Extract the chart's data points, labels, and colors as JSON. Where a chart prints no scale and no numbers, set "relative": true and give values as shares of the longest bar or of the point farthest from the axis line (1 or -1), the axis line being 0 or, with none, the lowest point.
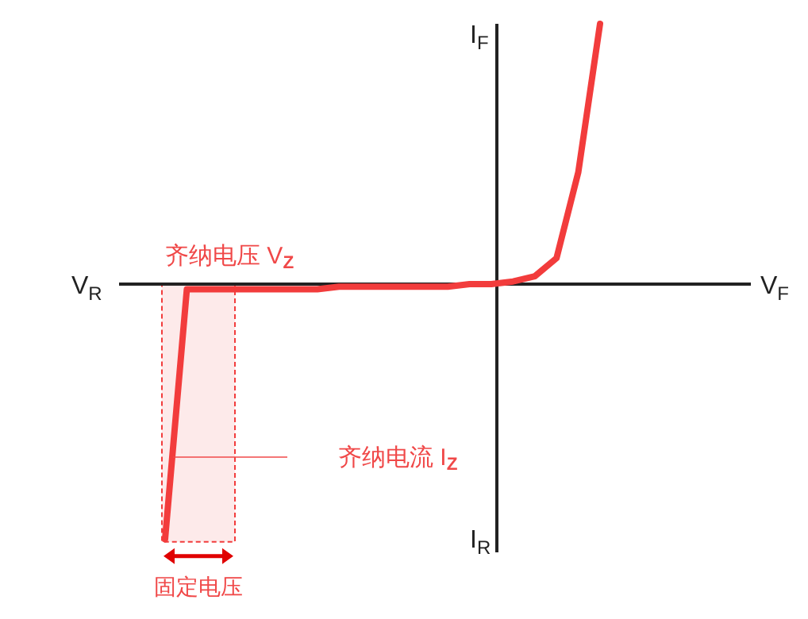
{
  "chart_data": {
    "type": "line",
    "relative": true,
    "categories": [
      null,
      null,
      null,
      null,
      null,
      null,
      null,
      null,
      null,
      null,
      null,
      null,
      null,
      null,
      null,
      null,
      null,
      null,
      null,
      null,
      null
    ],
    "series": [
      {
        "color": "#f23c3c",
        "values": [
          -0.98,
          -0.02,
          -0.02,
          -0.02,
          -0.02,
          -0.02,
          -0.02,
          -0.02,
          -0.01,
          -0.01,
          -0.01,
          -0.01,
          -0.01,
          -0.01,
          0,
          0,
          0.01,
          0.03,
          0.1,
          0.43,
          1.0
        ]
      }
    ],
    "bands": [
      {
        "axis": "y",
        "from": -0.99,
        "to": 0,
        "label": "固定电压",
        "color": "#fdeaea"
      }
    ],
    "annotations": [
      "齐纳电压 V$_{Z}$",
      "齐纳电流 I$_{Z}$",
      "V$_{R}$",
      "I$_{R}$",
      "V$_{F}$",
      "I$_{F}$"
    ],
    "line_style": "solid"
  }
}
